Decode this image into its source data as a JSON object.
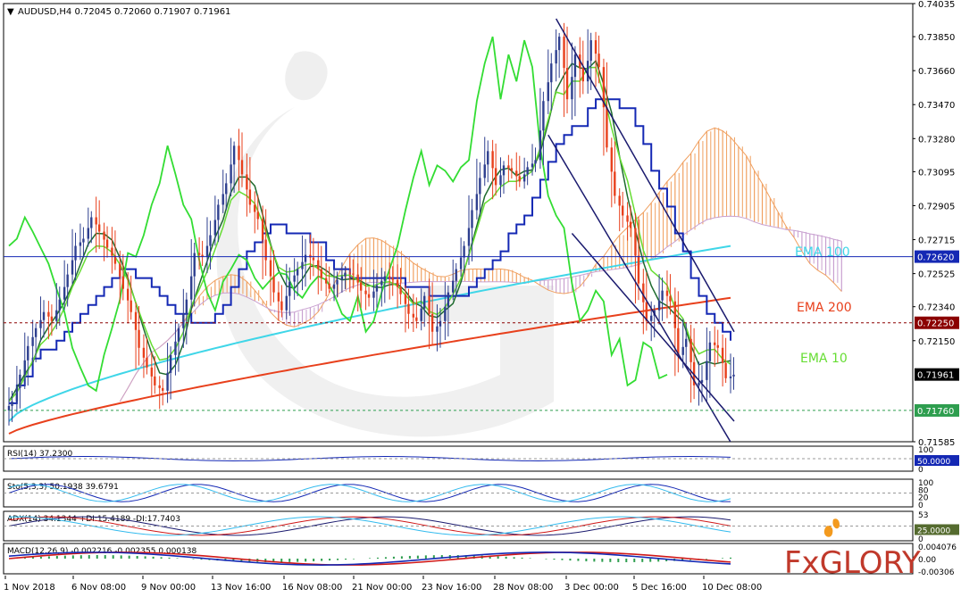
{
  "chart_data": {
    "type": "candlestick",
    "symbol_line": "AUDUSD,H4  0.72045 0.72060 0.71907 0.71961",
    "price_axis": {
      "range": [
        0.71585,
        0.74035
      ],
      "ticks": [
        "0.74035",
        "0.73850",
        "0.73660",
        "0.73470",
        "0.73280",
        "0.73095",
        "0.72905",
        "0.72715",
        "0.72525",
        "0.72340",
        "0.72150",
        "0.71960",
        "0.71760",
        "0.71585"
      ]
    },
    "markers": [
      {
        "value": 0.7262,
        "label": "0.72620",
        "color": "#1428b4"
      },
      {
        "value": 0.7225,
        "label": "0.72250",
        "color": "#8b0000"
      },
      {
        "value": 0.71961,
        "label": "0.71961",
        "color": "#000000"
      },
      {
        "value": 0.7176,
        "label": "0.71760",
        "color": "#2e9e4f"
      }
    ],
    "x_labels": [
      "1 Nov 2018",
      "6 Nov 08:00",
      "9 Nov 00:00",
      "13 Nov 16:00",
      "16 Nov 08:00",
      "21 Nov 00:00",
      "23 Nov 16:00",
      "28 Nov 08:00",
      "3 Dec 00:00",
      "5 Dec 16:00",
      "10 Dec 08:00"
    ],
    "ema_labels": [
      {
        "text": "EMA 100",
        "color": "#3fd6e8"
      },
      {
        "text": "EMA 200",
        "color": "#e8401c"
      },
      {
        "text": "EMA 10",
        "color": "#66dd33"
      }
    ],
    "close_path": [
      0.7181,
      0.7196,
      0.7212,
      0.7222,
      0.7231,
      0.7226,
      0.7238,
      0.7252,
      0.7268,
      0.7272,
      0.7284,
      0.7276,
      0.7267,
      0.7258,
      0.7244,
      0.7231,
      0.7211,
      0.72,
      0.719,
      0.7187,
      0.7207,
      0.7222,
      0.7238,
      0.7264,
      0.7262,
      0.7274,
      0.7291,
      0.7303,
      0.7324,
      0.7308,
      0.7291,
      0.7283,
      0.726,
      0.7242,
      0.7232,
      0.7248,
      0.7255,
      0.7263,
      0.726,
      0.725,
      0.7244,
      0.7249,
      0.7253,
      0.7252,
      0.7243,
      0.7239,
      0.7246,
      0.7251,
      0.7249,
      0.7241,
      0.723,
      0.7226,
      0.724,
      0.722,
      0.7226,
      0.7242,
      0.7255,
      0.7268,
      0.7288,
      0.7306,
      0.7321,
      0.7302,
      0.7313,
      0.731,
      0.7304,
      0.7312,
      0.7316,
      0.7349,
      0.737,
      0.7385,
      0.735,
      0.7375,
      0.736,
      0.7383,
      0.7368,
      0.7323,
      0.7296,
      0.7285,
      0.7278,
      0.7247,
      0.7226,
      0.7232,
      0.7243,
      0.7237,
      0.7207,
      0.7216,
      0.719,
      0.7193,
      0.7214,
      0.7211,
      0.7194,
      0.7196
    ],
    "indicators": [
      {
        "text": "RSI(14) 37.2300",
        "level": "50.0000",
        "ticks": [
          "100",
          "50",
          "0"
        ]
      },
      {
        "text": "Sto(5,3,3) 50.1938 39.6791",
        "level": "",
        "ticks": [
          "100",
          "80",
          "20",
          "0"
        ]
      },
      {
        "text": "ADX(14) 34.1344 +DI:15.4189 -DI:17.7403",
        "level": "25.0000",
        "ticks": [
          "53",
          "0"
        ]
      },
      {
        "text": "MACD(12,26,9) -0.002216 -0.002355 0.000138",
        "level": "",
        "ticks": [
          "0.004076",
          "0.00",
          "-0.00306"
        ]
      }
    ],
    "watermark": "FxGLORY"
  },
  "colors": {
    "bull": "#2e3f8f",
    "bear": "#e8401c",
    "ema200": "#e8401c",
    "ema100": "#3fd6e8",
    "ema10": "#66dd33",
    "kijun": "#1428b4",
    "tenkan": "#1e6b2e",
    "chikou": "#33dd33",
    "cloud_up": "#f0a060",
    "cloud_down": "#c8a0d0",
    "trendline": "#1a1a6e"
  }
}
